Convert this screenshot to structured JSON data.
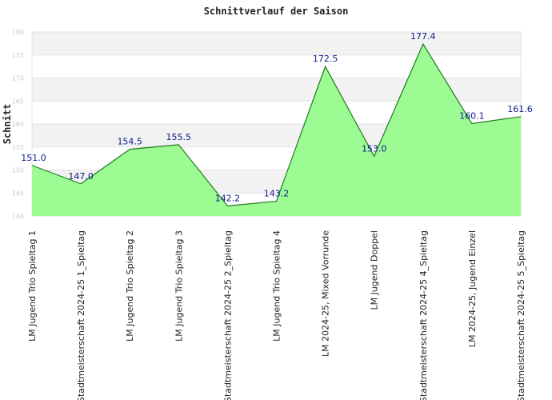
{
  "chart_data": {
    "type": "area",
    "title": "Schnittverlauf der Saison",
    "xlabel": "",
    "ylabel": "Schnitt",
    "ylim": [
      140,
      180
    ],
    "yticks": [
      140,
      145,
      150,
      155,
      160,
      165,
      170,
      175,
      180
    ],
    "grid": true,
    "legend": "none",
    "colors": {
      "fill": "#98fb8e",
      "line": "#1e7a1e",
      "band": "#f2f2f2",
      "label": "#0b1a8a"
    },
    "categories": [
      "LM Jugend Trio Spieltag 1",
      "Stadtmeisterschaft 2024-25    1_Spieltag",
      "LM Jugend Trio Spieltag 2",
      "LM Jugend Trio Spieltag 3",
      "Stadtmeisterschaft 2024-25    2_Spieltag",
      "LM Jugend Trio Spieltag 4",
      "LM 2024-25, Mixed Vorrunde",
      "LM Jugend Doppel",
      "Stadtmeisterschaft 2024-25    4_Spieltag",
      "LM 2024-25, Jugend Einzel",
      "Stadtmeisterschaft 2024-25    5_Spieltag"
    ],
    "values": [
      151.0,
      147.0,
      154.5,
      155.5,
      142.2,
      143.2,
      172.5,
      153.0,
      177.4,
      160.1,
      161.6
    ],
    "labels": [
      "151.0",
      "147.0",
      "154.5",
      "155.5",
      "142.2",
      "143.2",
      "172.5",
      "153.0",
      "177.4",
      "160.1",
      "161.6"
    ]
  }
}
